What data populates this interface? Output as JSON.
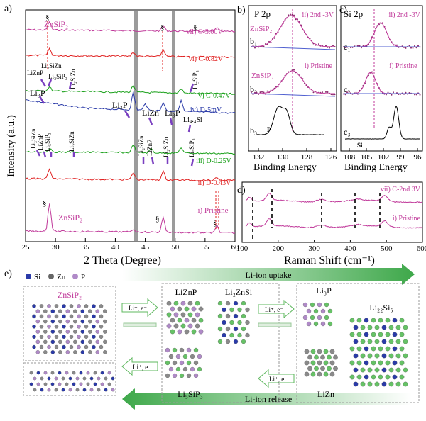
{
  "panel_a": {
    "label": "a)",
    "ylabel": "Intensity (a.u.)",
    "xlabel": "2 Theta (Degree)",
    "xticks": [
      "25",
      "30",
      "35",
      "40",
      "45",
      "50",
      "55",
      "60"
    ],
    "curves": [
      {
        "name": "vii) C-3.00V",
        "color": "#c0399a",
        "title": "ZnSiP₂"
      },
      {
        "name": "vi) C-0.82V",
        "color": "#e02020"
      },
      {
        "name": "v) C-0.47V",
        "color": "#1aa01a"
      },
      {
        "name": "iv) D-5mV",
        "color": "#2a3aa8"
      },
      {
        "name": "iii) D-0.25V",
        "color": "#1aa01a"
      },
      {
        "name": "ii) D-0.43V",
        "color": "#e02020"
      },
      {
        "name": "i) Pristine",
        "color": "#c0399a",
        "title": "ZnSiP₂"
      }
    ],
    "annotations": {
      "sect": "§",
      "li3sizn": "Li₃SiZn",
      "lizn_p": "LiZnP",
      "li3sip3": "Li₃SiP₃",
      "li2sizn": "Li₂SiZn",
      "li3p": "Li₃P",
      "lizn": "LiZn",
      "li44si": "Li₄.₄Si",
      "li5sip3": "Li₅SiP₃"
    }
  },
  "panel_b": {
    "label": "b)",
    "title": "P 2p",
    "xlabel": "Binding Energy",
    "xticks": [
      "132",
      "130",
      "128",
      "126"
    ],
    "rows": [
      {
        "id": "b₁",
        "text": "ZnSiP₂",
        "note": "ii) 2nd -3V"
      },
      {
        "id": "b₂",
        "text": "ZnSiP₂",
        "note": "i) Pristine"
      },
      {
        "id": "b₃",
        "text": "P"
      }
    ]
  },
  "panel_c": {
    "label": "c)",
    "title": "Si 2p",
    "xlabel": "Binding Energy",
    "xticks": [
      "108",
      "105",
      "102",
      "99",
      "96"
    ],
    "rows": [
      {
        "id": "c₁",
        "note": "ii) 2nd -3V"
      },
      {
        "id": "c₂",
        "note": "i) Pristine"
      },
      {
        "id": "c₃",
        "text": "Si"
      }
    ]
  },
  "panel_d": {
    "label": "d)",
    "xlabel": "Raman Shift (cm⁻¹)",
    "xticks": [
      "100",
      "200",
      "300",
      "400",
      "500",
      "600"
    ],
    "curves": [
      "vii) C-2nd 3V",
      "i) Pristine"
    ]
  },
  "panel_e": {
    "label": "e)",
    "legend": [
      "Si",
      "Zn",
      "P"
    ],
    "uptake": "Li-ion uptake",
    "release": "Li-ion release",
    "li_e": "Li⁺, e⁻",
    "structures": {
      "znsip2": "ZnSiP₂",
      "liznp": "LiZnP",
      "li2znsi": "Li₂ZnSi",
      "li5sip3": "Li₅SiP₃",
      "li3p": "Li₃P",
      "lizn": "LiZn",
      "li22si5": "Li₂₂Si₅"
    }
  },
  "colors": {
    "pink": "#c0399a",
    "red": "#e02020",
    "green": "#1aa01a",
    "blue": "#2a3aa8",
    "arrow_green": "#5fb85f"
  }
}
